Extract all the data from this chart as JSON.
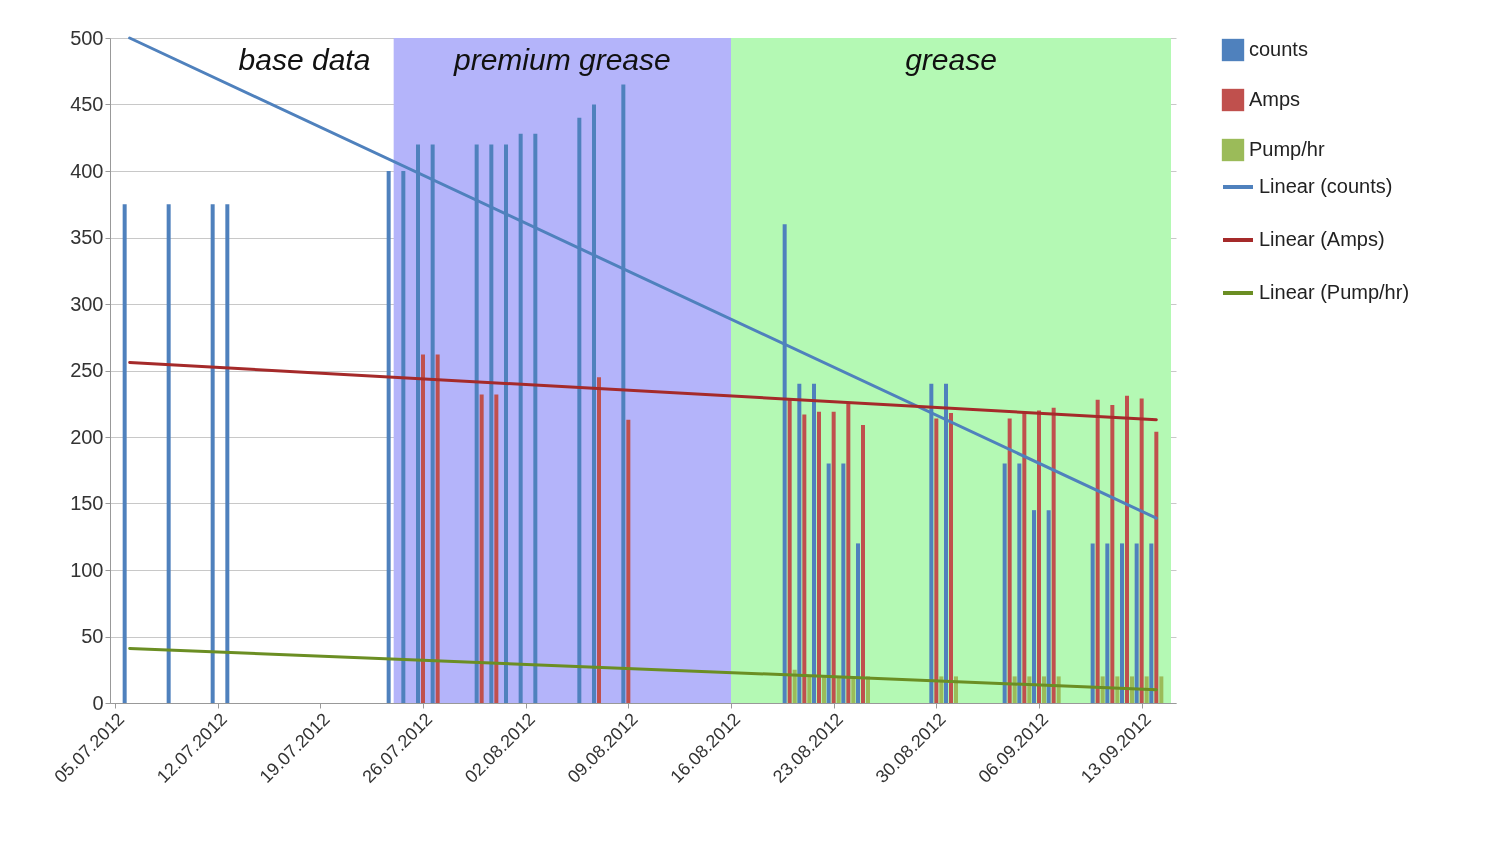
{
  "chart_data": {
    "type": "bar",
    "x": [
      "2012-07-06",
      "2012-07-09",
      "2012-07-12",
      "2012-07-13",
      "2012-07-24",
      "2012-07-25",
      "2012-07-26",
      "2012-07-27",
      "2012-07-30",
      "2012-07-31",
      "2012-08-01",
      "2012-08-02",
      "2012-08-03",
      "2012-08-06",
      "2012-08-07",
      "2012-08-09",
      "2012-08-20",
      "2012-08-21",
      "2012-08-22",
      "2012-08-23",
      "2012-08-24",
      "2012-08-25",
      "2012-08-30",
      "2012-08-31",
      "2012-09-04",
      "2012-09-05",
      "2012-09-06",
      "2012-09-07",
      "2012-09-10",
      "2012-09-11",
      "2012-09-12",
      "2012-09-13",
      "2012-09-14"
    ],
    "series": [
      {
        "name": "counts",
        "color": "#4f81bd",
        "values": [
          375,
          375,
          375,
          375,
          400,
          400,
          420,
          420,
          420,
          420,
          420,
          428,
          428,
          440,
          450,
          465,
          360,
          240,
          240,
          180,
          180,
          120,
          240,
          240,
          180,
          180,
          145,
          145,
          120,
          120,
          120,
          120,
          120
        ]
      },
      {
        "name": "Amps",
        "color": "#c0504d",
        "values": [
          null,
          null,
          null,
          null,
          null,
          null,
          262,
          262,
          232,
          232,
          null,
          null,
          null,
          null,
          245,
          213,
          228,
          217,
          219,
          219,
          225,
          209,
          214,
          218,
          214,
          219,
          220,
          222,
          228,
          224,
          231,
          229,
          204
        ]
      },
      {
        "name": "Pump/hr",
        "color": "#9bbb59",
        "values": [
          null,
          null,
          null,
          null,
          null,
          null,
          null,
          null,
          null,
          null,
          null,
          null,
          null,
          null,
          null,
          null,
          25,
          20,
          20,
          20,
          20,
          20,
          20,
          20,
          20,
          20,
          20,
          20,
          20,
          20,
          20,
          20,
          20
        ]
      },
      {
        "name": "Linear (counts)",
        "type": "line",
        "color": "#4f81bd",
        "x": [
          "2012-07-06",
          "2012-09-14"
        ],
        "values": [
          500,
          139
        ]
      },
      {
        "name": "Linear (Amps)",
        "type": "line",
        "color": "#a52a2a",
        "x": [
          "2012-07-06",
          "2012-09-14"
        ],
        "values": [
          256,
          213
        ]
      },
      {
        "name": "Linear (Pump/hr)",
        "type": "line",
        "color": "#6b8e23",
        "x": [
          "2012-07-06",
          "2012-09-14"
        ],
        "values": [
          41,
          10
        ]
      }
    ],
    "xlim": [
      "2012-07-05",
      "2012-09-15"
    ],
    "xticks": [
      {
        "value": "2012-07-05",
        "label": "05.07.2012"
      },
      {
        "value": "2012-07-12",
        "label": "12.07.2012"
      },
      {
        "value": "2012-07-19",
        "label": "19.07.2012"
      },
      {
        "value": "2012-07-26",
        "label": "26.07.2012"
      },
      {
        "value": "2012-08-02",
        "label": "02.08.2012"
      },
      {
        "value": "2012-08-09",
        "label": "09.08.2012"
      },
      {
        "value": "2012-08-16",
        "label": "16.08.2012"
      },
      {
        "value": "2012-08-23",
        "label": "23.08.2012"
      },
      {
        "value": "2012-08-30",
        "label": "30.08.2012"
      },
      {
        "value": "2012-09-06",
        "label": "06.09.2012"
      },
      {
        "value": "2012-09-13",
        "label": "13.09.2012"
      }
    ],
    "ylim": [
      0,
      500
    ],
    "yticks": [
      0,
      50,
      100,
      150,
      200,
      250,
      300,
      350,
      400,
      450,
      500
    ],
    "grid": "y",
    "legend": "right",
    "bands": [
      {
        "axis": "x",
        "from": "2012-07-24",
        "to": "2012-08-16",
        "label": "premium grease",
        "color": "#b4b4fa"
      },
      {
        "axis": "x",
        "from": "2012-08-16",
        "to": "2012-09-15",
        "label": "grease",
        "color": "#b4f9b4"
      }
    ],
    "annotations": [
      "base data"
    ]
  }
}
